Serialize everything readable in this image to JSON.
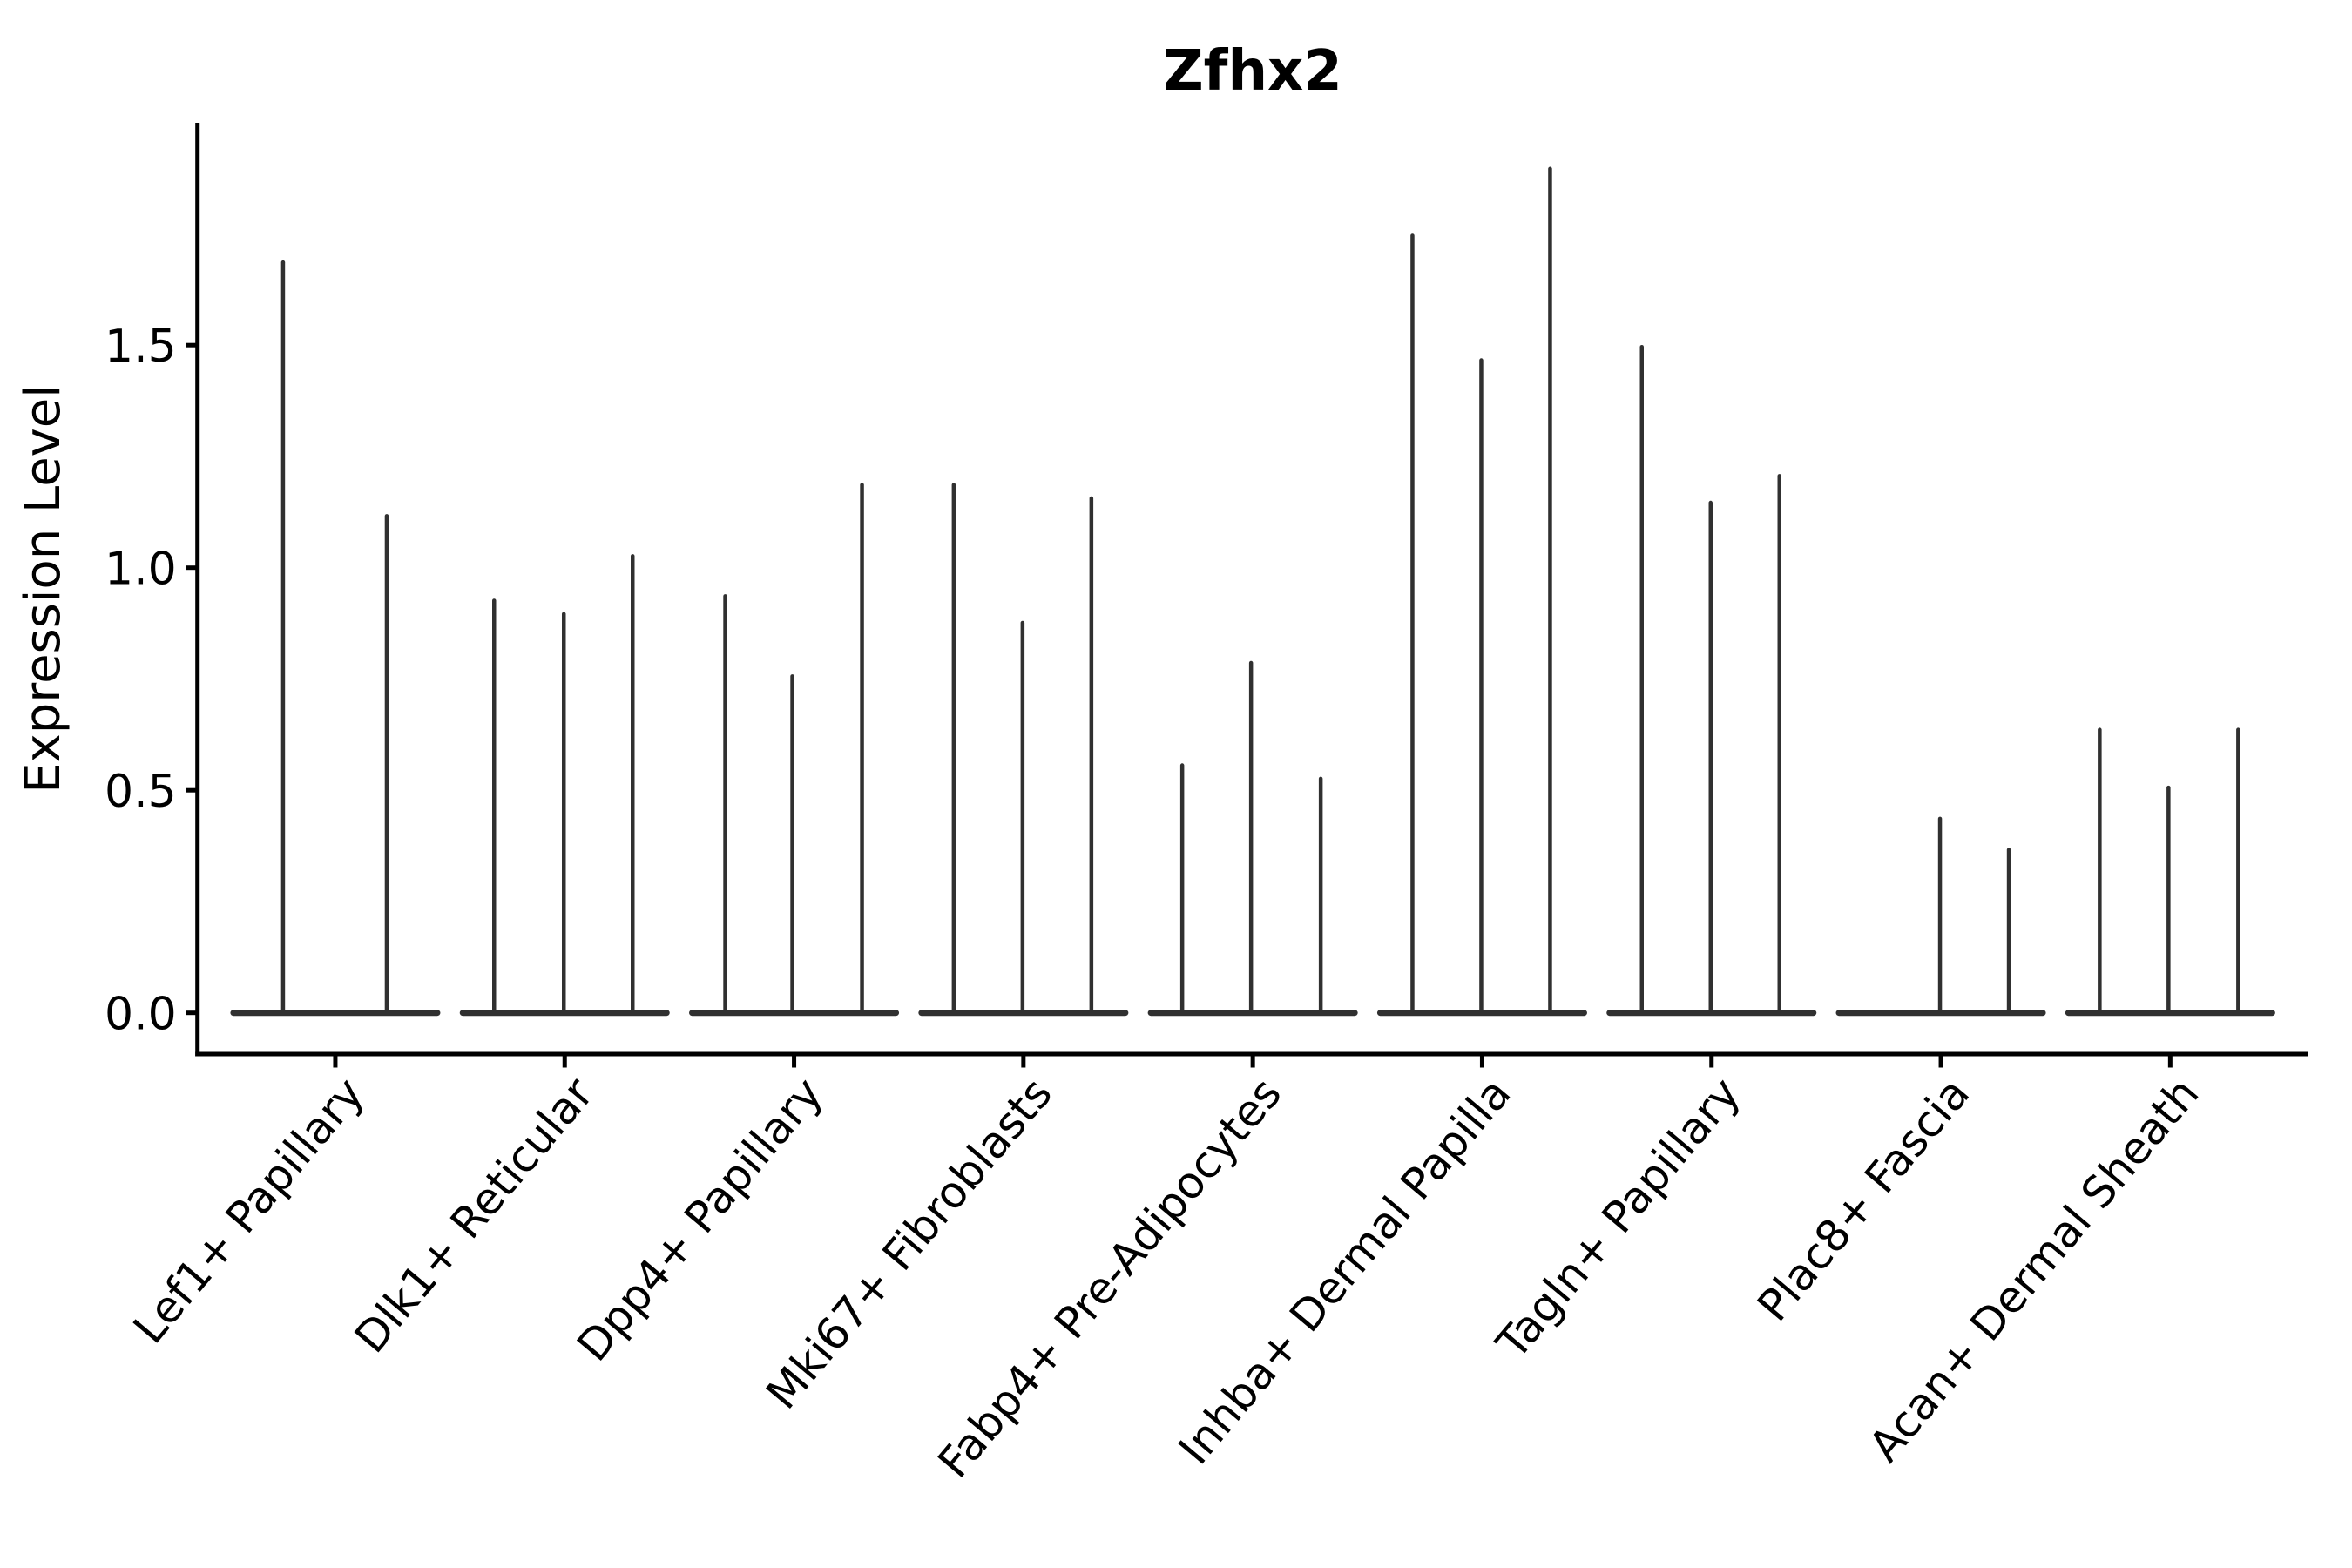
{
  "title": "Zfhx2",
  "ylabel": "Expression Level",
  "chart_data": {
    "type": "violin",
    "title": "Zfhx2",
    "xlabel": "",
    "ylabel": "Expression Level",
    "ylim": [
      -0.09,
      2.0
    ],
    "yticks": [
      0.0,
      0.5,
      1.0,
      1.5
    ],
    "ytick_labels": [
      "0.0",
      "0.5",
      "1.0",
      "1.5"
    ],
    "grid": false,
    "legend": null,
    "violin_color": "#303030",
    "axis_color": "#000000",
    "categories": [
      "Lef1+ Papillary",
      "Dlk1+ Reticular",
      "Dpp4+ Papillary",
      "Mki67+ Fibroblasts",
      "Fabp4+ Pre-Adipocytes",
      "Inhba+ Dermal Papilla",
      "Tagln+ Papillary",
      "Plac8+ Fascia",
      "Acan+ Dermal Sheath"
    ],
    "series": [
      {
        "category": "Lef1+ Papillary",
        "violins": [
          {
            "dx": -60,
            "max": 1.69
          },
          {
            "dx": 59,
            "max": 1.12
          }
        ]
      },
      {
        "category": "Dlk1+ Reticular",
        "violins": [
          {
            "dx": -81,
            "max": 0.93
          },
          {
            "dx": -1,
            "max": 0.9
          },
          {
            "dx": 78,
            "max": 1.03
          }
        ]
      },
      {
        "category": "Dpp4+ Papillary",
        "violins": [
          {
            "dx": -79,
            "max": 0.94
          },
          {
            "dx": -2,
            "max": 0.76
          },
          {
            "dx": 78,
            "max": 1.19
          }
        ]
      },
      {
        "category": "Mki67+ Fibroblasts",
        "violins": [
          {
            "dx": -80,
            "max": 1.19
          },
          {
            "dx": -1,
            "max": 0.88
          },
          {
            "dx": 78,
            "max": 1.16
          }
        ]
      },
      {
        "category": "Fabp4+ Pre-Adipocytes",
        "violins": [
          {
            "dx": -81,
            "max": 0.56
          },
          {
            "dx": -2,
            "max": 0.79
          },
          {
            "dx": 78,
            "max": 0.53
          }
        ]
      },
      {
        "category": "Inhba+ Dermal Papilla",
        "violins": [
          {
            "dx": -80,
            "max": 1.75
          },
          {
            "dx": -1,
            "max": 1.47
          },
          {
            "dx": 78,
            "max": 1.9
          }
        ]
      },
      {
        "category": "Tagln+ Papillary",
        "violins": [
          {
            "dx": -80,
            "max": 1.5
          },
          {
            "dx": -1,
            "max": 1.15
          },
          {
            "dx": 78,
            "max": 1.21
          }
        ]
      },
      {
        "category": "Plac8+ Fascia",
        "violins": [
          {
            "dx": -80,
            "max": 0.0
          },
          {
            "dx": -1,
            "max": 0.44
          },
          {
            "dx": 78,
            "max": 0.37
          }
        ]
      },
      {
        "category": "Acan+ Dermal Sheath",
        "violins": [
          {
            "dx": -81,
            "max": 0.64
          },
          {
            "dx": -2,
            "max": 0.51
          },
          {
            "dx": 78,
            "max": 0.64
          }
        ]
      }
    ],
    "baseline_half_width": 117,
    "x_label_rotation_deg": 50
  }
}
